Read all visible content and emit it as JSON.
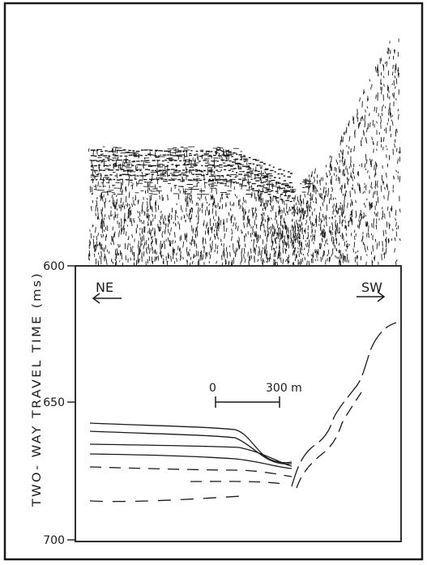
{
  "figure": {
    "y_axis": {
      "label": "TWO- WAY TRAVEL TIME (ms)",
      "ticks": [
        "600",
        "650",
        "700"
      ]
    },
    "direction_left": "NE",
    "direction_right": "SW",
    "scale_bar": {
      "start_label": "0",
      "end_label": "300 m"
    }
  },
  "colors": {
    "ink": "#1a1a1a",
    "paper": "#ffffff"
  }
}
